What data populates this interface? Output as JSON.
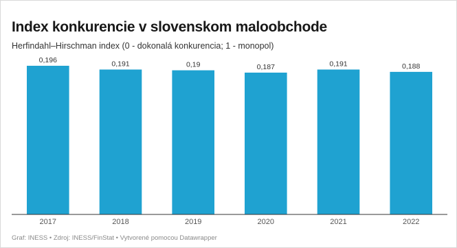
{
  "chart_data": {
    "type": "bar",
    "title": "Index konkurencie v slovenskom maloobchode",
    "subtitle": "Herfindahl–Hirschman index (0 - dokonalá konkurencia; 1 - monopol)",
    "categories": [
      "2017",
      "2018",
      "2019",
      "2020",
      "2021",
      "2022"
    ],
    "values": [
      0.196,
      0.191,
      0.19,
      0.187,
      0.191,
      0.188
    ],
    "value_labels": [
      "0,196",
      "0,191",
      "0,19",
      "0,187",
      "0,191",
      "0,188"
    ],
    "ylim": [
      0,
      0.196
    ],
    "bar_color": "#1fa2d1",
    "grid": false,
    "legend": "none"
  },
  "footer": "Graf: INESS • Zdroj: INESS/FinStat • Vytvorené pomocou Datawrapper"
}
